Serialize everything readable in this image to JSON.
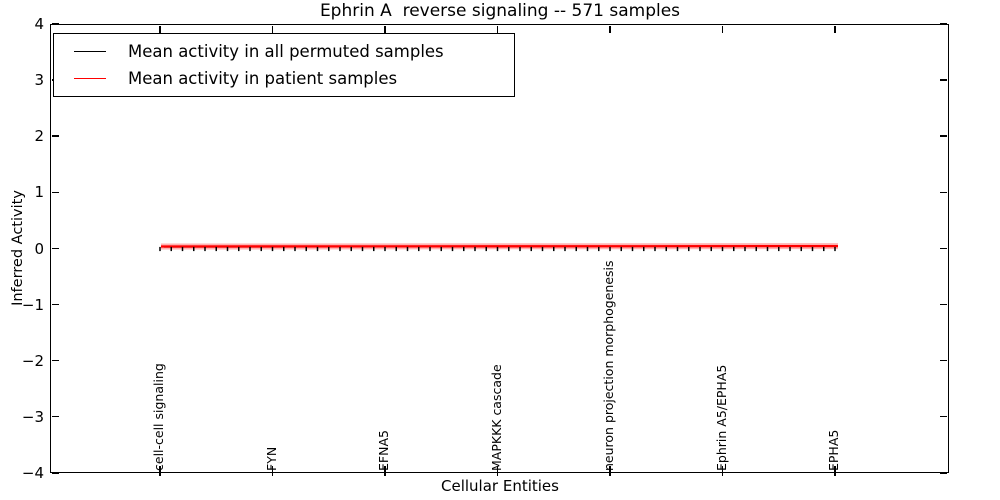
{
  "chart_data": {
    "type": "line",
    "title": "Ephrin A  reverse signaling -- 571 samples",
    "xlabel": "Cellular Entities",
    "ylabel": "Inferred Activity",
    "ylim": [
      -4,
      4
    ],
    "yticks": [
      "4",
      "3",
      "2",
      "1",
      "0",
      "−1",
      "−2",
      "−3",
      "−4"
    ],
    "ytick_values": [
      4,
      3,
      2,
      1,
      0,
      -1,
      -2,
      -3,
      -4
    ],
    "x_tick_labels": [
      "cell-cell signaling",
      "FYN",
      "EFNA5",
      "MAPKKK cascade",
      "neuron projection morphogenesis",
      "Ephrin A5/EPHA5",
      "EPHA5"
    ],
    "n_entities": 61,
    "label_every": 10,
    "grid": false,
    "legend": {
      "position": "upper left",
      "frame": true
    },
    "series": [
      {
        "name": "Mean activity in all permuted samples",
        "color": "#000000",
        "marker": "vertical-dash",
        "approx_values_at_labeled_ticks": [
          0.0,
          0.0,
          0.0,
          0.0,
          0.0,
          0.0,
          0.0
        ]
      },
      {
        "name": "Mean activity in patient samples",
        "color": "#ff0000",
        "marker": "none",
        "approx_values_at_labeled_ticks": [
          0.04,
          0.04,
          0.04,
          0.04,
          0.04,
          0.04,
          0.04
        ]
      }
    ]
  }
}
